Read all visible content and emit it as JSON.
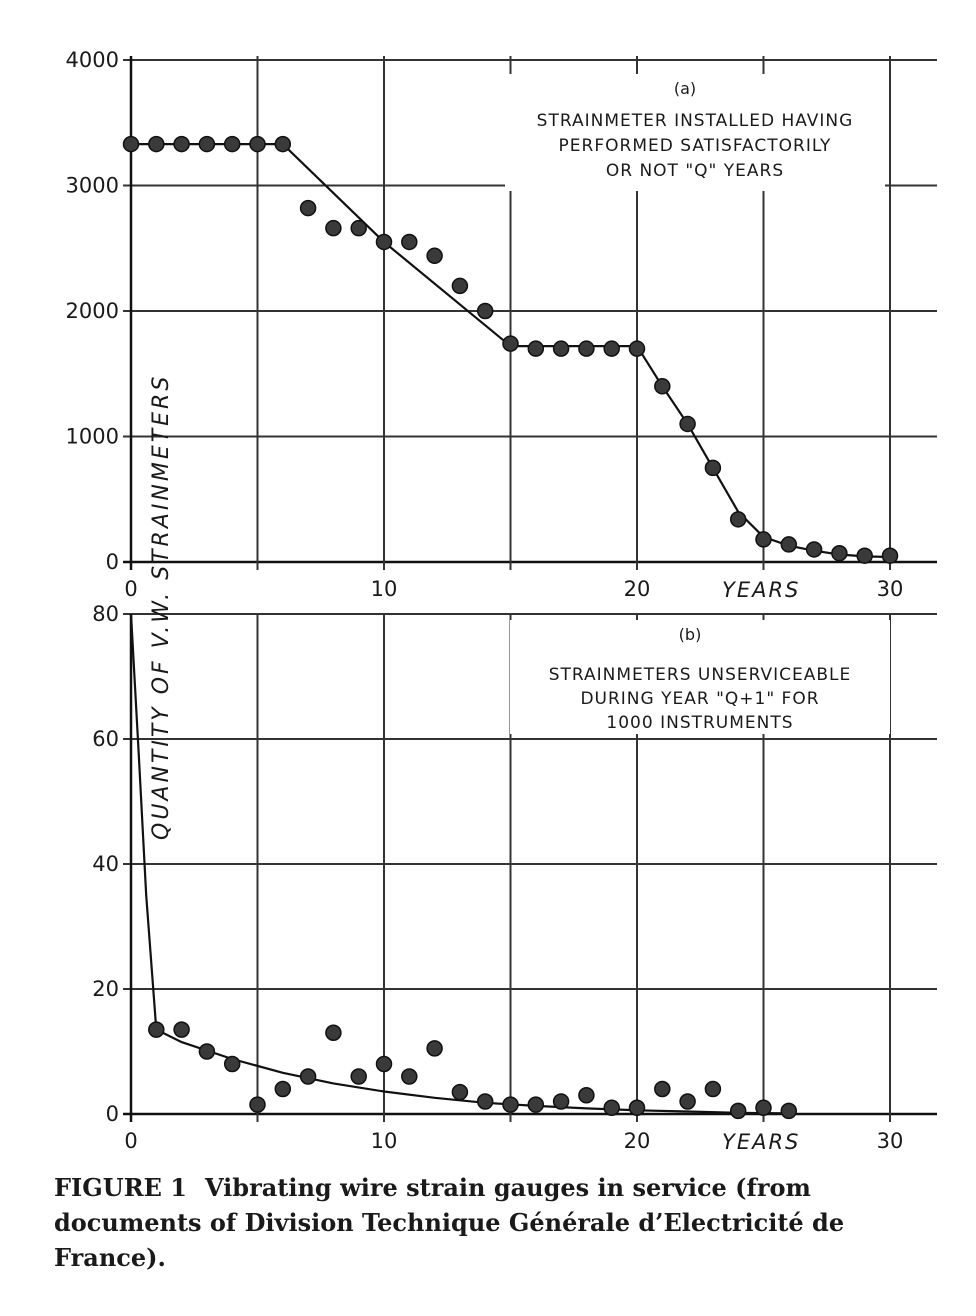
{
  "caption": {
    "label": "FIGURE 1",
    "text": "Vibrating wire strain gauges in service (from documents of Division Technique Générale d’Electricité de France)."
  },
  "y_axis_label": "QUANTITY OF V.W. STRAINMETERS",
  "colors": {
    "ink": "#111111",
    "marker": "#3a3a3a",
    "background": "#ffffff"
  },
  "chart_data": [
    {
      "type": "scatter",
      "panel": "(a)",
      "title": "STRAINMETER INSTALLED HAVING PERFORMED SATISFACTORILY OR NOT \"Q\" YEARS",
      "title_lines": [
        "STRAINMETER INSTALLED HAVING",
        "PERFORMED  SATISFACTORILY",
        "OR NOT \"Q\" YEARS"
      ],
      "xlabel": "YEARS",
      "ylabel": "QUANTITY OF V.W. STRAINMETERS",
      "xlim": [
        0,
        32
      ],
      "ylim": [
        0,
        4000
      ],
      "xticks": [
        0,
        10,
        20,
        30
      ],
      "xtick_labels": [
        "0",
        "10",
        "20",
        "30"
      ],
      "yticks": [
        0,
        1000,
        2000,
        3000,
        4000
      ],
      "ytick_labels": [
        "0",
        "1000",
        "2000",
        "3000",
        "4000"
      ],
      "grid": true,
      "series": [
        {
          "name": "observed",
          "x": [
            0,
            1,
            2,
            3,
            4,
            5,
            6,
            7,
            8,
            9,
            10,
            11,
            12,
            13,
            14,
            15,
            16,
            17,
            18,
            19,
            20,
            21,
            22,
            23,
            24,
            25,
            26,
            27,
            28,
            29,
            30
          ],
          "y": [
            3330,
            3330,
            3330,
            3330,
            3330,
            3330,
            3330,
            2820,
            2660,
            2660,
            2550,
            2550,
            2440,
            2200,
            2000,
            1740,
            1700,
            1700,
            1700,
            1700,
            1700,
            1400,
            1100,
            750,
            340,
            180,
            140,
            100,
            70,
            50,
            50
          ]
        },
        {
          "name": "fit",
          "style": "line",
          "x": [
            0,
            6,
            10,
            15,
            20,
            21,
            22,
            23,
            24,
            25,
            26,
            27,
            28,
            29,
            30
          ],
          "y": [
            3330,
            3330,
            2550,
            1720,
            1720,
            1400,
            1100,
            750,
            400,
            200,
            130,
            90,
            60,
            45,
            40
          ]
        }
      ]
    },
    {
      "type": "scatter",
      "panel": "(b)",
      "title": "STRAINMETERS UNSERVICEABLE DURING YEAR \"Q+1\" FOR 1000 INSTRUMENTS",
      "title_lines": [
        "STRAINMETERS UNSERVICEABLE",
        "DURING YEAR \"Q+1\" FOR",
        "1000 INSTRUMENTS"
      ],
      "xlabel": "YEARS",
      "xlim": [
        0,
        32
      ],
      "ylim": [
        0,
        80
      ],
      "xticks": [
        0,
        10,
        20,
        30
      ],
      "xtick_labels": [
        "0",
        "10",
        "20",
        "30"
      ],
      "yticks": [
        0,
        20,
        40,
        60,
        80
      ],
      "ytick_labels": [
        "0",
        "20",
        "40",
        "60",
        "80"
      ],
      "grid": true,
      "series": [
        {
          "name": "observed",
          "x": [
            1,
            2,
            3,
            4,
            5,
            6,
            7,
            8,
            9,
            10,
            11,
            12,
            13,
            14,
            15,
            16,
            17,
            18,
            19,
            20,
            21,
            22,
            23,
            24,
            25,
            26
          ],
          "y": [
            13.5,
            13.5,
            10,
            8,
            1.5,
            4,
            6,
            13,
            6,
            8,
            6,
            10.5,
            3.5,
            2,
            1.5,
            1.5,
            2,
            3,
            1,
            1,
            4,
            2,
            4,
            0.5,
            1,
            0.5
          ]
        },
        {
          "name": "fit",
          "style": "line",
          "x": [
            0,
            0.3,
            0.6,
            1,
            2,
            4,
            6,
            8,
            10,
            12,
            14,
            16,
            18,
            20,
            22,
            24,
            26
          ],
          "y": [
            80,
            58,
            35,
            13.5,
            11.5,
            8.8,
            6.6,
            4.9,
            3.6,
            2.6,
            1.8,
            1.3,
            0.9,
            0.6,
            0.4,
            0.2,
            0.1
          ]
        }
      ]
    }
  ]
}
